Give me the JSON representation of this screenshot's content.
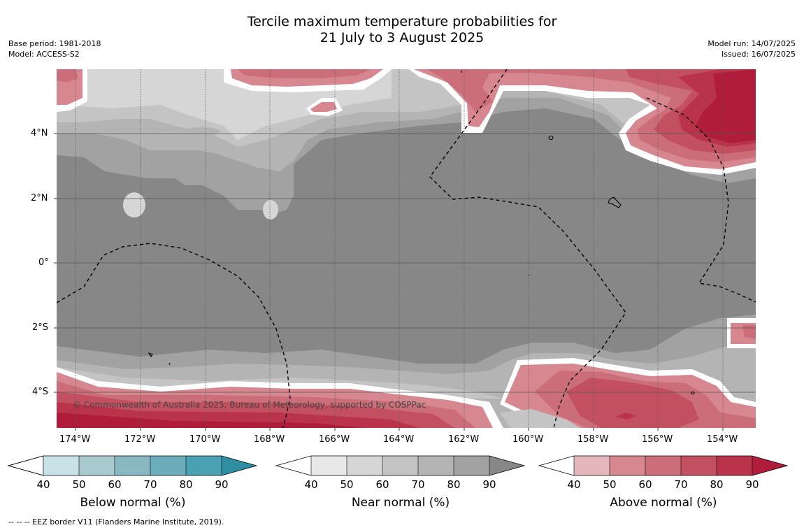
{
  "header": {
    "title_line1": "Tercile maximum temperature probabilities for",
    "title_line2": "21 July to 3 August 2025",
    "base_period": "Base period: 1981-2018",
    "model": "Model: ACCESS-S2",
    "model_run": "Model run: 14/07/2025",
    "issued": "Issued: 16/07/2025"
  },
  "map": {
    "lon_labels": [
      "174°W",
      "172°W",
      "170°W",
      "168°W",
      "166°W",
      "164°W",
      "162°W",
      "160°W",
      "158°W",
      "156°W",
      "154°W"
    ],
    "lat_labels": [
      "4°N",
      "2°N",
      "0°",
      "2°S",
      "4°S"
    ],
    "credit": "© Commonwealth of Australia 2025, Bureau of Meteorology, supported by COSPPac",
    "colors": {
      "near_90": "#878787",
      "near_80": "#a2a2a2",
      "near_70": "#b4b4b4",
      "near_60": "#c4c4c4",
      "near_50": "#d6d6d6",
      "above_50": "#d6878f",
      "above_60": "#cc6e79",
      "above_70": "#c35060",
      "above_80": "#b9344a",
      "above_90": "#b01d3b"
    }
  },
  "colorbars": [
    {
      "title": "Below normal (%)",
      "ticks": [
        "40",
        "50",
        "60",
        "70",
        "80",
        "90"
      ],
      "colors": [
        "#c8e2e8",
        "#a8c9ce",
        "#89b7c2",
        "#6cadba",
        "#4aa1b1",
        "#2f8ea2"
      ]
    },
    {
      "title": "Near normal (%)",
      "ticks": [
        "40",
        "50",
        "60",
        "70",
        "80",
        "90"
      ],
      "colors": [
        "#e8e8e8",
        "#d6d6d6",
        "#c4c4c4",
        "#b4b4b4",
        "#a2a2a2",
        "#878787"
      ]
    },
    {
      "title": "Above normal (%)",
      "ticks": [
        "40",
        "50",
        "60",
        "70",
        "80",
        "90"
      ],
      "colors": [
        "#e3b7bb",
        "#d6878f",
        "#cc6e79",
        "#c35060",
        "#b9344a",
        "#b01d3b"
      ]
    }
  ],
  "footnote": "--  --  -- EEZ border V11 (Flanders Marine Institute, 2019)."
}
